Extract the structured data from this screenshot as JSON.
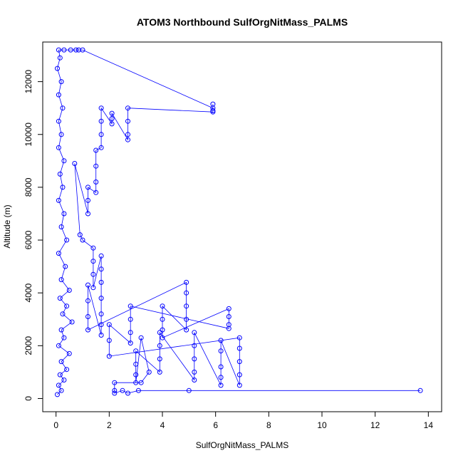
{
  "chart_data": {
    "type": "scatter",
    "title": "ATOM3 Northbound SulfOrgNitMass_PALMS",
    "xlabel": "SulfOrgNitMass_PALMS",
    "ylabel": "Altitude (m)",
    "xlim": [
      -0.5,
      14.5
    ],
    "ylim": [
      -500,
      13500
    ],
    "x_ticks": [
      0,
      2,
      4,
      6,
      8,
      10,
      12,
      14
    ],
    "x_tick_labels": [
      "0",
      "2",
      "4",
      "6",
      "8",
      "10",
      "12",
      "14"
    ],
    "y_ticks": [
      0,
      2000,
      4000,
      6000,
      8000,
      10000,
      12000
    ],
    "y_tick_labels": [
      "0",
      "2000",
      "4000",
      "6000",
      "8000",
      "10000",
      "12000"
    ],
    "grid": false,
    "legend": "none",
    "marker": "open-circle",
    "color": "#0000ff",
    "connected": true,
    "series": [
      {
        "points": [
          {
            "x": 0.05,
            "y": 150
          },
          {
            "x": 0.2,
            "y": 300
          },
          {
            "x": 0.1,
            "y": 500
          },
          {
            "x": 0.3,
            "y": 700
          },
          {
            "x": 0.15,
            "y": 900
          },
          {
            "x": 0.4,
            "y": 1100
          },
          {
            "x": 0.2,
            "y": 1400
          },
          {
            "x": 0.5,
            "y": 1700
          },
          {
            "x": 0.1,
            "y": 2000
          },
          {
            "x": 0.3,
            "y": 2300
          },
          {
            "x": 0.2,
            "y": 2600
          },
          {
            "x": 0.6,
            "y": 2900
          },
          {
            "x": 0.25,
            "y": 3200
          },
          {
            "x": 0.4,
            "y": 3500
          },
          {
            "x": 0.15,
            "y": 3800
          },
          {
            "x": 0.5,
            "y": 4100
          },
          {
            "x": 0.2,
            "y": 4500
          },
          {
            "x": 0.35,
            "y": 5000
          },
          {
            "x": 0.1,
            "y": 5500
          },
          {
            "x": 0.4,
            "y": 6000
          },
          {
            "x": 0.2,
            "y": 6500
          },
          {
            "x": 0.3,
            "y": 7000
          },
          {
            "x": 0.1,
            "y": 7500
          },
          {
            "x": 0.25,
            "y": 8000
          },
          {
            "x": 0.15,
            "y": 8500
          },
          {
            "x": 0.3,
            "y": 9000
          },
          {
            "x": 0.1,
            "y": 9500
          },
          {
            "x": 0.2,
            "y": 10000
          },
          {
            "x": 0.1,
            "y": 10500
          },
          {
            "x": 0.25,
            "y": 11000
          },
          {
            "x": 0.1,
            "y": 11500
          },
          {
            "x": 0.2,
            "y": 12000
          },
          {
            "x": 0.05,
            "y": 12500
          },
          {
            "x": 0.15,
            "y": 12900
          },
          {
            "x": 0.1,
            "y": 13200
          },
          {
            "x": 0.3,
            "y": 13200
          },
          {
            "x": 0.55,
            "y": 13200
          },
          {
            "x": 0.75,
            "y": 13200
          },
          {
            "x": 0.85,
            "y": 13200
          },
          {
            "x": 1.0,
            "y": 13200
          },
          {
            "x": 5.9,
            "y": 11000
          },
          {
            "x": 5.9,
            "y": 11150
          },
          {
            "x": 5.9,
            "y": 10900
          },
          {
            "x": 5.9,
            "y": 10850
          },
          {
            "x": 2.7,
            "y": 11000
          },
          {
            "x": 2.7,
            "y": 10500
          },
          {
            "x": 2.7,
            "y": 10000
          },
          {
            "x": 2.7,
            "y": 9800
          },
          {
            "x": 2.1,
            "y": 10800
          },
          {
            "x": 2.1,
            "y": 10600
          },
          {
            "x": 2.1,
            "y": 10400
          },
          {
            "x": 1.7,
            "y": 11000
          },
          {
            "x": 1.7,
            "y": 10500
          },
          {
            "x": 1.7,
            "y": 10000
          },
          {
            "x": 1.7,
            "y": 9500
          },
          {
            "x": 1.5,
            "y": 9400
          },
          {
            "x": 1.5,
            "y": 8800
          },
          {
            "x": 1.5,
            "y": 8200
          },
          {
            "x": 1.5,
            "y": 7800
          },
          {
            "x": 1.2,
            "y": 8000
          },
          {
            "x": 1.2,
            "y": 7500
          },
          {
            "x": 1.2,
            "y": 7000
          },
          {
            "x": 0.7,
            "y": 8900
          },
          {
            "x": 0.9,
            "y": 6200
          },
          {
            "x": 1.0,
            "y": 6000
          },
          {
            "x": 1.4,
            "y": 5700
          },
          {
            "x": 1.4,
            "y": 5200
          },
          {
            "x": 1.4,
            "y": 4700
          },
          {
            "x": 1.4,
            "y": 4200
          },
          {
            "x": 1.7,
            "y": 5400
          },
          {
            "x": 1.7,
            "y": 4900
          },
          {
            "x": 1.7,
            "y": 4400
          },
          {
            "x": 1.7,
            "y": 3800
          },
          {
            "x": 1.7,
            "y": 3200
          },
          {
            "x": 1.7,
            "y": 2800
          },
          {
            "x": 1.7,
            "y": 2400
          },
          {
            "x": 1.2,
            "y": 4300
          },
          {
            "x": 1.2,
            "y": 3700
          },
          {
            "x": 1.2,
            "y": 3100
          },
          {
            "x": 1.2,
            "y": 2600
          },
          {
            "x": 4.9,
            "y": 4400
          },
          {
            "x": 4.9,
            "y": 4000
          },
          {
            "x": 4.9,
            "y": 3500
          },
          {
            "x": 4.9,
            "y": 3000
          },
          {
            "x": 4.9,
            "y": 2600
          },
          {
            "x": 4.0,
            "y": 3500
          },
          {
            "x": 4.0,
            "y": 3000
          },
          {
            "x": 4.0,
            "y": 2600
          },
          {
            "x": 4.0,
            "y": 2300
          },
          {
            "x": 6.5,
            "y": 3400
          },
          {
            "x": 6.5,
            "y": 3100
          },
          {
            "x": 6.5,
            "y": 2800
          },
          {
            "x": 6.5,
            "y": 2650
          },
          {
            "x": 2.8,
            "y": 3500
          },
          {
            "x": 2.8,
            "y": 3000
          },
          {
            "x": 2.8,
            "y": 2500
          },
          {
            "x": 2.8,
            "y": 2100
          },
          {
            "x": 2.0,
            "y": 2800
          },
          {
            "x": 2.0,
            "y": 2200
          },
          {
            "x": 2.0,
            "y": 1600
          },
          {
            "x": 6.9,
            "y": 2300
          },
          {
            "x": 6.9,
            "y": 1900
          },
          {
            "x": 6.9,
            "y": 1400
          },
          {
            "x": 6.9,
            "y": 900
          },
          {
            "x": 6.9,
            "y": 500
          },
          {
            "x": 6.2,
            "y": 2200
          },
          {
            "x": 6.2,
            "y": 1800
          },
          {
            "x": 6.2,
            "y": 1200
          },
          {
            "x": 6.2,
            "y": 800
          },
          {
            "x": 6.2,
            "y": 500
          },
          {
            "x": 5.2,
            "y": 2500
          },
          {
            "x": 5.2,
            "y": 2000
          },
          {
            "x": 5.2,
            "y": 1500
          },
          {
            "x": 5.2,
            "y": 1000
          },
          {
            "x": 5.2,
            "y": 700
          },
          {
            "x": 3.9,
            "y": 2500
          },
          {
            "x": 3.9,
            "y": 2000
          },
          {
            "x": 3.9,
            "y": 1500
          },
          {
            "x": 3.9,
            "y": 1000
          },
          {
            "x": 3.0,
            "y": 1800
          },
          {
            "x": 3.0,
            "y": 1300
          },
          {
            "x": 3.0,
            "y": 900
          },
          {
            "x": 3.0,
            "y": 600
          },
          {
            "x": 3.2,
            "y": 2300
          },
          {
            "x": 3.5,
            "y": 1000
          },
          {
            "x": 3.2,
            "y": 600
          },
          {
            "x": 2.2,
            "y": 600
          },
          {
            "x": 2.2,
            "y": 300
          },
          {
            "x": 2.2,
            "y": 200
          },
          {
            "x": 2.5,
            "y": 300
          },
          {
            "x": 2.7,
            "y": 200
          },
          {
            "x": 3.1,
            "y": 300
          },
          {
            "x": 5.0,
            "y": 300
          },
          {
            "x": 13.7,
            "y": 300
          }
        ]
      }
    ]
  }
}
